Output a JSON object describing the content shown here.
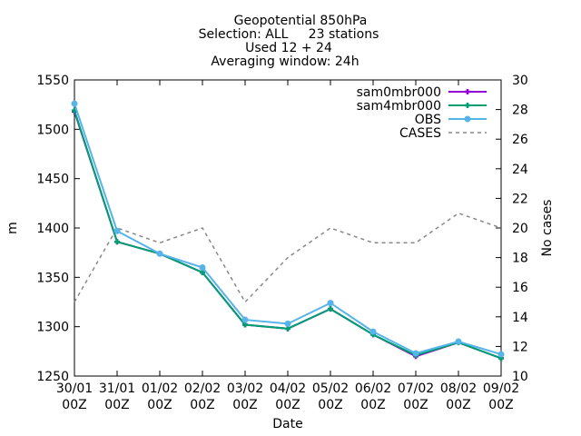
{
  "title_lines": [
    "Geopotential 850hPa",
    "Selection: ALL     23 stations",
    "Used 12 + 24",
    "Averaging window: 24h"
  ],
  "chart_data": {
    "type": "line",
    "title": "Geopotential 850hPa",
    "xlabel": "Date",
    "ylabel": "m",
    "y2label": "No cases",
    "ylim": [
      1250,
      1550
    ],
    "y2lim": [
      10,
      30
    ],
    "yticks": [
      1250,
      1300,
      1350,
      1400,
      1450,
      1500,
      1550
    ],
    "y2ticks": [
      10,
      12,
      14,
      16,
      18,
      20,
      22,
      24,
      26,
      28,
      30
    ],
    "categories": [
      "30/01 00Z",
      "31/01 00Z",
      "01/02 00Z",
      "02/02 00Z",
      "03/02 00Z",
      "04/02 00Z",
      "05/02 00Z",
      "06/02 00Z",
      "07/02 00Z",
      "08/02 00Z",
      "09/02 00Z"
    ],
    "x_labels": [
      [
        "30/01",
        "00Z"
      ],
      [
        "31/01",
        "00Z"
      ],
      [
        "01/02",
        "00Z"
      ],
      [
        "02/02",
        "00Z"
      ],
      [
        "03/02",
        "00Z"
      ],
      [
        "04/02",
        "00Z"
      ],
      [
        "05/02",
        "00Z"
      ],
      [
        "06/02",
        "00Z"
      ],
      [
        "07/02",
        "00Z"
      ],
      [
        "08/02",
        "00Z"
      ],
      [
        "09/02",
        "00Z"
      ]
    ],
    "legend_position": "top-right",
    "grid": false,
    "series": [
      {
        "name": "sam0mbr000",
        "axis": "y",
        "color": "#9400d3",
        "marker": "plus",
        "dash": false,
        "values": [
          1518,
          1386,
          1374,
          1355,
          1302,
          1298,
          1318,
          1292,
          1270,
          1284,
          1268
        ]
      },
      {
        "name": "sam4mbr000",
        "axis": "y",
        "color": "#009e73",
        "marker": "plus",
        "dash": false,
        "values": [
          1519,
          1386,
          1374,
          1355,
          1302,
          1298,
          1318,
          1292,
          1271,
          1284,
          1268
        ]
      },
      {
        "name": "OBS",
        "axis": "y",
        "color": "#56b4e9",
        "marker": "circle",
        "dash": false,
        "values": [
          1526,
          1397,
          1374,
          1360,
          1307,
          1303,
          1324,
          1295,
          1273,
          1285,
          1272
        ]
      },
      {
        "name": "CASES",
        "axis": "y2",
        "color": "#888888",
        "marker": "none",
        "dash": true,
        "values": [
          15,
          20,
          19,
          20,
          15,
          18,
          20,
          19,
          19,
          21,
          20
        ]
      }
    ]
  }
}
